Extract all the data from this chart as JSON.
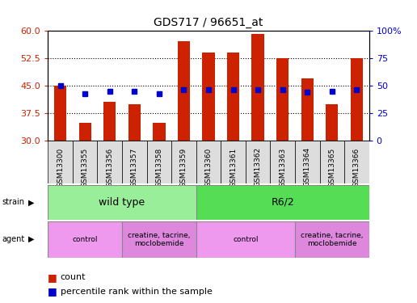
{
  "title": "GDS717 / 96651_at",
  "samples": [
    "GSM13300",
    "GSM13355",
    "GSM13356",
    "GSM13357",
    "GSM13358",
    "GSM13359",
    "GSM13360",
    "GSM13361",
    "GSM13362",
    "GSM13363",
    "GSM13364",
    "GSM13365",
    "GSM13366"
  ],
  "count_values": [
    45.0,
    35.0,
    40.5,
    40.0,
    35.0,
    57.0,
    54.0,
    54.0,
    59.0,
    52.5,
    47.0,
    40.0,
    52.5
  ],
  "percentile_values": [
    50,
    43,
    45,
    45,
    43,
    46,
    46,
    46,
    46,
    46,
    44,
    45,
    46
  ],
  "ymin": 30,
  "ymax": 60,
  "yticks": [
    30,
    37.5,
    45,
    52.5,
    60
  ],
  "right_yticks": [
    0,
    25,
    50,
    75,
    100
  ],
  "right_yticklabels": [
    "0",
    "25",
    "50",
    "75",
    "100%"
  ],
  "bar_color": "#cc2200",
  "dot_color": "#0000cc",
  "bar_width": 0.5,
  "strain_groups": [
    {
      "label": "wild type",
      "xstart": -0.5,
      "xend": 5.5,
      "color": "#99ee99"
    },
    {
      "label": "R6/2",
      "xstart": 5.5,
      "xend": 12.5,
      "color": "#55dd55"
    }
  ],
  "agent_groups": [
    {
      "label": "control",
      "xstart": -0.5,
      "xend": 2.5,
      "color": "#ee99ee"
    },
    {
      "label": "creatine, tacrine,\nmoclobemide",
      "xstart": 2.5,
      "xend": 5.5,
      "color": "#dd88dd"
    },
    {
      "label": "control",
      "xstart": 5.5,
      "xend": 9.5,
      "color": "#ee99ee"
    },
    {
      "label": "creatine, tacrine,\nmoclobemide",
      "xstart": 9.5,
      "xend": 12.5,
      "color": "#dd88dd"
    }
  ],
  "dotted_lines": [
    37.5,
    45.0,
    52.5
  ],
  "legend_items": [
    {
      "label": "count",
      "color": "#cc2200"
    },
    {
      "label": "percentile rank within the sample",
      "color": "#0000cc"
    }
  ],
  "bg_color": "#ffffff",
  "bar_color_red": "#cc2200",
  "dot_color_blue": "#0000cc",
  "tick_color_red": "#cc2200",
  "tick_color_blue": "#0000cc"
}
